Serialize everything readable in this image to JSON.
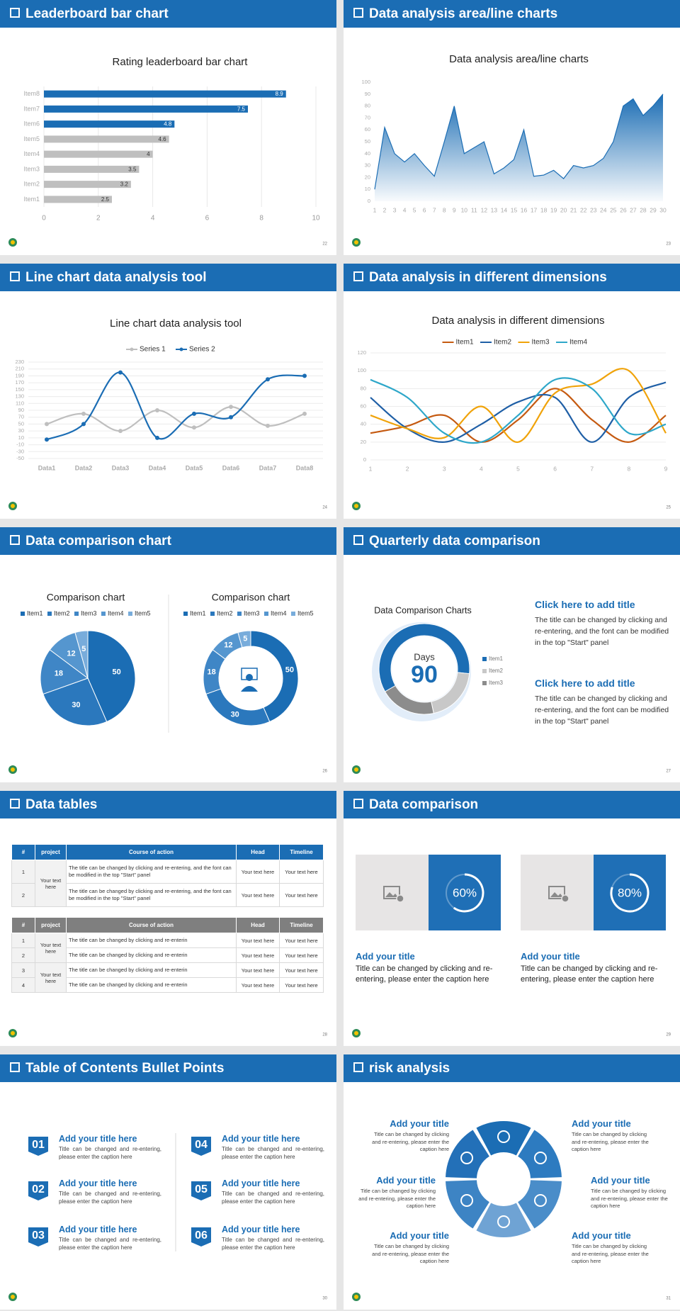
{
  "slides": [
    {
      "title": "Leaderboard bar chart",
      "page": "22",
      "chart_data": {
        "type": "bar",
        "horizontal": true,
        "title": "Rating leaderboard bar chart",
        "categories": [
          "Item1",
          "Item2",
          "Item3",
          "Item4",
          "Item5",
          "Item6",
          "Item7",
          "Item8"
        ],
        "values": [
          2.5,
          3.2,
          3.5,
          4,
          4.6,
          4.8,
          7.5,
          8.9
        ],
        "colors": [
          "#bfbfbf",
          "#bfbfbf",
          "#bfbfbf",
          "#bfbfbf",
          "#bfbfbf",
          "#1b6db4",
          "#1b6db4",
          "#1b6db4"
        ],
        "xlim": [
          0,
          10
        ],
        "xticks": [
          0,
          2,
          4,
          6,
          8,
          10
        ],
        "grid": true,
        "data_labels": true
      }
    },
    {
      "title": "Data analysis area/line charts",
      "page": "23",
      "chart_data": {
        "type": "area",
        "title": "Data analysis area/line charts",
        "x": [
          1,
          2,
          3,
          4,
          5,
          6,
          7,
          8,
          9,
          10,
          11,
          12,
          13,
          14,
          15,
          16,
          17,
          18,
          19,
          20,
          21,
          22,
          23,
          24,
          25,
          26,
          27,
          28,
          29,
          30
        ],
        "values": [
          10,
          62,
          40,
          33,
          40,
          30,
          21,
          50,
          80,
          40,
          45,
          50,
          23,
          28,
          35,
          60,
          21,
          22,
          26,
          19,
          30,
          28,
          30,
          36,
          50,
          80,
          86,
          72,
          80,
          90
        ],
        "color": "#1b6db4",
        "xlim": [
          1,
          30
        ],
        "xticks": [
          1,
          2,
          3,
          4,
          5,
          6,
          7,
          8,
          9,
          10,
          11,
          12,
          13,
          14,
          15,
          16,
          17,
          18,
          19,
          20,
          21,
          22,
          23,
          24,
          25,
          26,
          27,
          28,
          29,
          30
        ],
        "ylim": [
          0,
          100
        ],
        "yticks": [
          0,
          10,
          20,
          30,
          40,
          50,
          60,
          70,
          80,
          90,
          100
        ]
      }
    },
    {
      "title": "Line chart data analysis tool",
      "page": "24",
      "chart_data": {
        "type": "line",
        "smooth": true,
        "markers": true,
        "grid": true,
        "title": "Line chart data analysis tool",
        "categories": [
          "Data1",
          "Data2",
          "Data3",
          "Data4",
          "Data5",
          "Data6",
          "Data7",
          "Data8"
        ],
        "series": [
          {
            "name": "Series 1",
            "color": "#bfbfbf",
            "values": [
              50,
              80,
              30,
              90,
              40,
              100,
              45,
              80
            ]
          },
          {
            "name": "Series 2",
            "color": "#1b6db4",
            "values": [
              5,
              50,
              200,
              10,
              80,
              70,
              180,
              190
            ]
          }
        ],
        "ylim": [
          -50,
          230
        ],
        "yticks": [
          -50,
          -30,
          -10,
          10,
          30,
          50,
          70,
          90,
          110,
          130,
          150,
          170,
          190,
          210,
          230
        ]
      }
    },
    {
      "title": "Data analysis in different dimensions",
      "page": "25",
      "chart_data": {
        "type": "line",
        "smooth": true,
        "grid": true,
        "title": "Data analysis in different dimensions",
        "x": [
          1,
          2,
          3,
          4,
          5,
          6,
          7,
          8,
          9
        ],
        "xlim": [
          1,
          9
        ],
        "xticks": [
          1,
          2,
          3,
          4,
          5,
          6,
          7,
          8,
          9
        ],
        "series": [
          {
            "name": "Item1",
            "color": "#c55a11",
            "values": [
              30,
              38,
              50,
              20,
              45,
              80,
              45,
              20,
              50
            ]
          },
          {
            "name": "Item2",
            "color": "#1f5fa6",
            "values": [
              70,
              35,
              20,
              40,
              65,
              70,
              20,
              70,
              87
            ]
          },
          {
            "name": "Item3",
            "color": "#f0a30a",
            "values": [
              50,
              35,
              25,
              60,
              20,
              75,
              85,
              100,
              30
            ]
          },
          {
            "name": "Item4",
            "color": "#2ea7c9",
            "values": [
              90,
              70,
              30,
              20,
              50,
              90,
              80,
              30,
              40
            ]
          }
        ],
        "ylim": [
          0,
          120
        ],
        "yticks": [
          0,
          20,
          40,
          60,
          80,
          100,
          120
        ]
      }
    },
    {
      "title": "Data comparison chart",
      "page": "26",
      "chart_data": [
        {
          "type": "pie",
          "title": "Comparison chart",
          "categories": [
            "Item1",
            "Item2",
            "Item3",
            "Item4",
            "Item5"
          ],
          "values": [
            50,
            30,
            18,
            12,
            5
          ],
          "colors": [
            "#1b6db4",
            "#2b78bd",
            "#3f86c6",
            "#5596cf",
            "#78acdb"
          ],
          "data_labels": true
        },
        {
          "type": "donut",
          "title": "Comparison chart",
          "categories": [
            "Item1",
            "Item2",
            "Item3",
            "Item4",
            "Item5"
          ],
          "values": [
            50,
            30,
            18,
            12,
            5
          ],
          "colors": [
            "#1b6db4",
            "#2b78bd",
            "#3f86c6",
            "#5596cf",
            "#78acdb"
          ],
          "data_labels": true
        }
      ]
    },
    {
      "title": "Quarterly data comparison",
      "page": "27",
      "chart_data": {
        "type": "donut",
        "title": "Data Comparison Charts",
        "center_label": "Days",
        "center_value": 90,
        "categories": [
          "Item1",
          "Item2",
          "Item3"
        ],
        "values": [
          60,
          20,
          20
        ],
        "colors": [
          "#1b6db4",
          "#c8c8c8",
          "#8c8c8c"
        ]
      },
      "notes": [
        {
          "heading": "Click here to add title",
          "text": "The title can be changed by clicking and re-entering, and the font can be modified in the top \"Start\" panel"
        },
        {
          "heading": "Click here to add title",
          "text": "The title can be changed by clicking and re-entering, and the font can be modified in the top \"Start\" panel"
        }
      ]
    },
    {
      "title": "Data tables",
      "page": "28",
      "tables": [
        {
          "header_color": "#1b6db4",
          "header": [
            "#",
            "project",
            "Course of action",
            "Head",
            "Timeline"
          ],
          "groups": [
            {
              "project": "Your text here",
              "rows": [
                [
                  "1",
                  "The title can be changed by clicking and re-entering, and the font can be modified in the top \"Start\" panel",
                  "Your text here",
                  "Your text here"
                ],
                [
                  "2",
                  "The title can be changed by clicking and re-entering, and the font can be modified in the top \"Start\" panel",
                  "Your text here",
                  "Your text here"
                ]
              ]
            }
          ]
        },
        {
          "header_color": "#7f7f7f",
          "header": [
            "#",
            "project",
            "Course of action",
            "Head",
            "Timeline"
          ],
          "groups": [
            {
              "project": "Your text here",
              "rows": [
                [
                  "1",
                  "The title can be changed by clicking and re-enterin",
                  "Your text here",
                  "Your text here"
                ],
                [
                  "2",
                  "The title can be changed by clicking and re-enterin",
                  "Your text here",
                  "Your text here"
                ]
              ]
            },
            {
              "project": "Your text here",
              "rows": [
                [
                  "3",
                  "The title can be changed by clicking and re-enterin",
                  "Your text here",
                  "Your text here"
                ],
                [
                  "4",
                  "The title can be changed by clicking and re-enterin",
                  "Your text here",
                  "Your text here"
                ]
              ]
            }
          ]
        }
      ]
    },
    {
      "title": "Data comparison",
      "page": "29",
      "cards": [
        {
          "value": 60,
          "value_label": "60%",
          "title": "Add your title",
          "text": "Title can be changed by clicking and re-entering, please enter the caption here"
        },
        {
          "value": 80,
          "value_label": "80%",
          "title": "Add your title",
          "text": "Title can be changed by clicking and re-entering, please enter the caption here"
        }
      ]
    },
    {
      "title": "Table of Contents Bullet Points",
      "page": "30",
      "items": [
        {
          "number": "01",
          "title": "Add your title here",
          "text": "Title can be changed and re-entering, please enter the caption here"
        },
        {
          "number": "02",
          "title": "Add your title here",
          "text": "Title can be changed and re-entering, please enter the caption here"
        },
        {
          "number": "03",
          "title": "Add your title here",
          "text": "Title can be changed and re-entering, please enter the caption here"
        },
        {
          "number": "04",
          "title": "Add your title here",
          "text": "Title can be changed and re-entering, please enter the caption here"
        },
        {
          "number": "05",
          "title": "Add your title here",
          "text": "Title can be changed and re-entering, please enter the caption here"
        },
        {
          "number": "06",
          "title": "Add your title here",
          "text": "Title can be changed and re-entering, please enter the caption here"
        }
      ]
    },
    {
      "title": "risk analysis",
      "page": "31",
      "risks": [
        {
          "title": "Add your title",
          "text": "Title can be changed by clicking and re-entering, please enter the caption here"
        },
        {
          "title": "Add your title",
          "text": "Title can be changed by clicking and re-entering, please enter the caption here"
        },
        {
          "title": "Add your title",
          "text": "Title can be changed by clicking and re-entering, please enter the caption here"
        },
        {
          "title": "Add your title",
          "text": "Title can be changed by clicking and re-entering, please enter the caption here"
        },
        {
          "title": "Add your title",
          "text": "Title can be changed by clicking and re-entering, please enter the caption here"
        },
        {
          "title": "Add your title",
          "text": "Title can be changed by clicking and re-entering, please enter the caption here"
        }
      ]
    }
  ]
}
